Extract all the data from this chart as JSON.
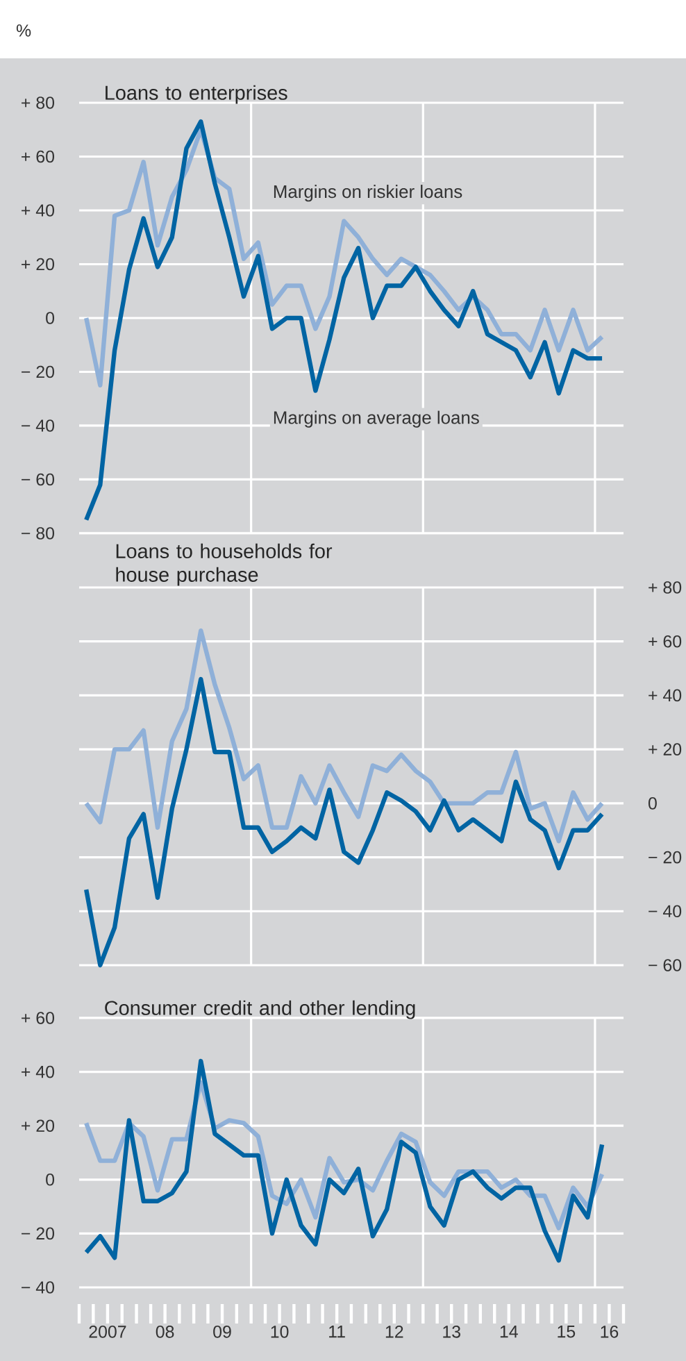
{
  "chart_data": [
    {
      "type": "line",
      "title": "Loans to enterprises",
      "ylabel": "%",
      "grid": "y",
      "tick_labels": "y",
      "x": [
        "2007-02-15",
        "2007-05-15",
        "2007-08-15",
        "2007-11-15",
        "2008-02-15",
        "2008-05-15",
        "2008-08-15",
        "2008-11-15",
        "2009-02-15",
        "2009-05-15",
        "2009-08-15",
        "2009-11-15",
        "2010-02-15",
        "2010-05-15",
        "2010-08-15",
        "2010-11-15",
        "2011-02-15",
        "2011-05-15",
        "2011-08-15",
        "2011-11-15",
        "2012-02-15",
        "2012-05-15",
        "2012-08-15",
        "2012-11-15",
        "2013-02-15",
        "2013-05-15",
        "2013-08-15",
        "2013-11-15",
        "2014-02-15",
        "2014-05-15",
        "2014-08-15",
        "2014-11-15",
        "2015-02-15",
        "2015-05-15",
        "2015-08-15",
        "2015-11-15",
        "2016-02-15"
      ],
      "xlim": [
        "2007-01-01",
        "2016-07-01"
      ],
      "ylim": [
        -80,
        80
      ],
      "yticks": [
        {
          "value": -80,
          "label": "− 80"
        },
        {
          "value": -60,
          "label": "− 60"
        },
        {
          "value": -40,
          "label": "− 40"
        },
        {
          "value": -20,
          "label": "− 20"
        },
        0,
        {
          "value": 20,
          "label": "+ 20"
        },
        {
          "value": 40,
          "label": "+ 40"
        },
        {
          "value": 60,
          "label": "+ 60"
        },
        {
          "value": 80,
          "label": "+ 80"
        }
      ],
      "ref_lines": [
        {
          "axis": "x",
          "value": "2010-01-01",
          "color": "#ffffff"
        },
        {
          "axis": "x",
          "value": "2013-01-01",
          "color": "#ffffff"
        },
        {
          "axis": "x",
          "value": "2016-01-01",
          "color": "#ffffff"
        }
      ],
      "series": [
        {
          "name": "Margins on riskier loans",
          "color": "#8fb0d8",
          "values": [
            0,
            -25,
            38,
            40,
            58,
            27,
            45,
            55,
            70,
            52,
            48,
            22,
            28,
            5,
            12,
            12,
            -4,
            8,
            36,
            30,
            22,
            16,
            22,
            19,
            16,
            10,
            3,
            8,
            3,
            -6,
            -6,
            -12,
            3,
            -12,
            3,
            -12,
            -7
          ]
        },
        {
          "name": "Margins on average loans",
          "color": "#0064a3",
          "values": [
            -75,
            -62,
            -12,
            18,
            37,
            19,
            30,
            63,
            73,
            50,
            30,
            8,
            23,
            -4,
            0,
            0,
            -27,
            -8,
            15,
            26,
            0,
            12,
            12,
            19,
            10,
            3,
            -3,
            10,
            -6,
            -9,
            -12,
            -22,
            -9,
            -28,
            -12,
            -15,
            -15
          ]
        }
      ]
    },
    {
      "type": "line",
      "title": "Loans to households for house purchase",
      "grid": "y",
      "tick_labels": "y",
      "x": [
        "2007-02-15",
        "2007-05-15",
        "2007-08-15",
        "2007-11-15",
        "2008-02-15",
        "2008-05-15",
        "2008-08-15",
        "2008-11-15",
        "2009-02-15",
        "2009-05-15",
        "2009-08-15",
        "2009-11-15",
        "2010-02-15",
        "2010-05-15",
        "2010-08-15",
        "2010-11-15",
        "2011-02-15",
        "2011-05-15",
        "2011-08-15",
        "2011-11-15",
        "2012-02-15",
        "2012-05-15",
        "2012-08-15",
        "2012-11-15",
        "2013-02-15",
        "2013-05-15",
        "2013-08-15",
        "2013-11-15",
        "2014-02-15",
        "2014-05-15",
        "2014-08-15",
        "2014-11-15",
        "2015-02-15",
        "2015-05-15",
        "2015-08-15",
        "2015-11-15",
        "2016-02-15"
      ],
      "xlim": [
        "2007-01-01",
        "2016-07-01"
      ],
      "ylim": [
        -60,
        80
      ],
      "yticks": [
        {
          "value": -60,
          "label": "− 60"
        },
        {
          "value": -40,
          "label": "− 40"
        },
        {
          "value": -20,
          "label": "− 20"
        },
        0,
        {
          "value": 20,
          "label": "+ 20"
        },
        {
          "value": 40,
          "label": "+ 40"
        },
        {
          "value": 60,
          "label": "+ 60"
        },
        {
          "value": 80,
          "label": "+ 80"
        }
      ],
      "ref_lines": [
        {
          "axis": "x",
          "value": "2010-01-01",
          "color": "#ffffff"
        },
        {
          "axis": "x",
          "value": "2013-01-01",
          "color": "#ffffff"
        },
        {
          "axis": "x",
          "value": "2016-01-01",
          "color": "#ffffff"
        }
      ],
      "series": [
        {
          "color": "#8fb0d8",
          "values": [
            0,
            -7,
            20,
            20,
            27,
            -9,
            23,
            35,
            64,
            44,
            28,
            9,
            14,
            -9,
            -9,
            10,
            0,
            14,
            4,
            -5,
            14,
            12,
            18,
            12,
            8,
            0,
            0,
            0,
            4,
            4,
            19,
            -2,
            0,
            -14,
            4,
            -6,
            0
          ]
        },
        {
          "color": "#0064a3",
          "values": [
            -32,
            -60,
            -46,
            -13,
            -4,
            -35,
            -2,
            20,
            46,
            19,
            19,
            -9,
            -9,
            -18,
            -14,
            -9,
            -13,
            5,
            -18,
            -22,
            -10,
            4,
            1,
            -3,
            -10,
            1,
            -10,
            -6,
            -10,
            -14,
            8,
            -6,
            -10,
            -24,
            -10,
            -10,
            -4
          ]
        }
      ]
    },
    {
      "type": "line",
      "title": "Consumer credit and other lending",
      "grid": "y",
      "x": [
        "2007-02-15",
        "2007-05-15",
        "2007-08-15",
        "2007-11-15",
        "2008-02-15",
        "2008-05-15",
        "2008-08-15",
        "2008-11-15",
        "2009-02-15",
        "2009-05-15",
        "2009-08-15",
        "2009-11-15",
        "2010-02-15",
        "2010-05-15",
        "2010-08-15",
        "2010-11-15",
        "2011-02-15",
        "2011-05-15",
        "2011-08-15",
        "2011-11-15",
        "2012-02-15",
        "2012-05-15",
        "2012-08-15",
        "2012-11-15",
        "2013-02-15",
        "2013-05-15",
        "2013-08-15",
        "2013-11-15",
        "2014-02-15",
        "2014-05-15",
        "2014-08-15",
        "2014-11-15",
        "2015-02-15",
        "2015-05-15",
        "2015-08-15",
        "2015-11-15",
        "2016-02-15"
      ],
      "xlim": [
        "2007-01-01",
        "2016-07-01"
      ],
      "ylim": [
        -40,
        60
      ],
      "xticks": [
        {
          "value": "2007-01-01",
          "label": null
        },
        {
          "value": "2007-04-01",
          "label": null
        },
        {
          "value": "2007-07-01",
          "label": "2007"
        },
        {
          "value": "2007-10-01",
          "label": null
        },
        {
          "value": "2008-01-01",
          "label": null
        },
        {
          "value": "2008-04-01",
          "label": null
        },
        {
          "value": "2008-07-01",
          "label": "08"
        },
        {
          "value": "2008-10-01",
          "label": null
        },
        {
          "value": "2009-01-01",
          "label": null
        },
        {
          "value": "2009-04-01",
          "label": null
        },
        {
          "value": "2009-07-01",
          "label": "09"
        },
        {
          "value": "2009-10-01",
          "label": null
        },
        {
          "value": "2010-01-01",
          "label": null
        },
        {
          "value": "2010-04-01",
          "label": null
        },
        {
          "value": "2010-07-01",
          "label": "10"
        },
        {
          "value": "2010-10-01",
          "label": null
        },
        {
          "value": "2011-01-01",
          "label": null
        },
        {
          "value": "2011-04-01",
          "label": null
        },
        {
          "value": "2011-07-01",
          "label": "11"
        },
        {
          "value": "2011-10-01",
          "label": null
        },
        {
          "value": "2012-01-01",
          "label": null
        },
        {
          "value": "2012-04-01",
          "label": null
        },
        {
          "value": "2012-07-01",
          "label": "12"
        },
        {
          "value": "2012-10-01",
          "label": null
        },
        {
          "value": "2013-01-01",
          "label": null
        },
        {
          "value": "2013-04-01",
          "label": null
        },
        {
          "value": "2013-07-01",
          "label": "13"
        },
        {
          "value": "2013-10-01",
          "label": null
        },
        {
          "value": "2014-01-01",
          "label": null
        },
        {
          "value": "2014-04-01",
          "label": null
        },
        {
          "value": "2014-07-01",
          "label": "14"
        },
        {
          "value": "2014-10-01",
          "label": null
        },
        {
          "value": "2015-01-01",
          "label": null
        },
        {
          "value": "2015-04-01",
          "label": null
        },
        {
          "value": "2015-07-01",
          "label": "15"
        },
        {
          "value": "2015-10-01",
          "label": null
        },
        {
          "value": "2016-01-01",
          "label": null
        },
        {
          "value": "2016-04-01",
          "label": "16"
        },
        {
          "value": "2016-07-01",
          "label": null
        }
      ],
      "yticks": [
        {
          "value": -40,
          "label": "− 40"
        },
        {
          "value": -20,
          "label": "− 20"
        },
        0,
        {
          "value": 20,
          "label": "+ 20"
        },
        {
          "value": 40,
          "label": "+ 40"
        },
        {
          "value": 60,
          "label": "+ 60"
        }
      ],
      "ref_lines": [
        {
          "axis": "x",
          "value": "2010-01-01",
          "color": "#ffffff"
        },
        {
          "axis": "x",
          "value": "2013-01-01",
          "color": "#ffffff"
        },
        {
          "axis": "x",
          "value": "2016-01-01",
          "color": "#ffffff"
        }
      ],
      "series": [
        {
          "color": "#8fb0d8",
          "values": [
            21,
            7,
            7,
            21,
            16,
            -4,
            15,
            15,
            36,
            19,
            22,
            21,
            16,
            -6,
            -9,
            0,
            -14,
            8,
            -1,
            0,
            -4,
            7,
            17,
            14,
            -1,
            -6,
            3,
            3,
            3,
            -3,
            0,
            -6,
            -6,
            -18,
            -3,
            -10,
            2
          ]
        },
        {
          "color": "#0064a3",
          "values": [
            -27,
            -21,
            -29,
            22,
            -8,
            -8,
            -5,
            3,
            44,
            17,
            13,
            9,
            9,
            -20,
            0,
            -17,
            -24,
            0,
            -5,
            4,
            -21,
            -11,
            14,
            10,
            -10,
            -17,
            0,
            3,
            -3,
            -7,
            -3,
            -3,
            -19,
            -30,
            -6,
            -14,
            13
          ]
        }
      ]
    }
  ]
}
